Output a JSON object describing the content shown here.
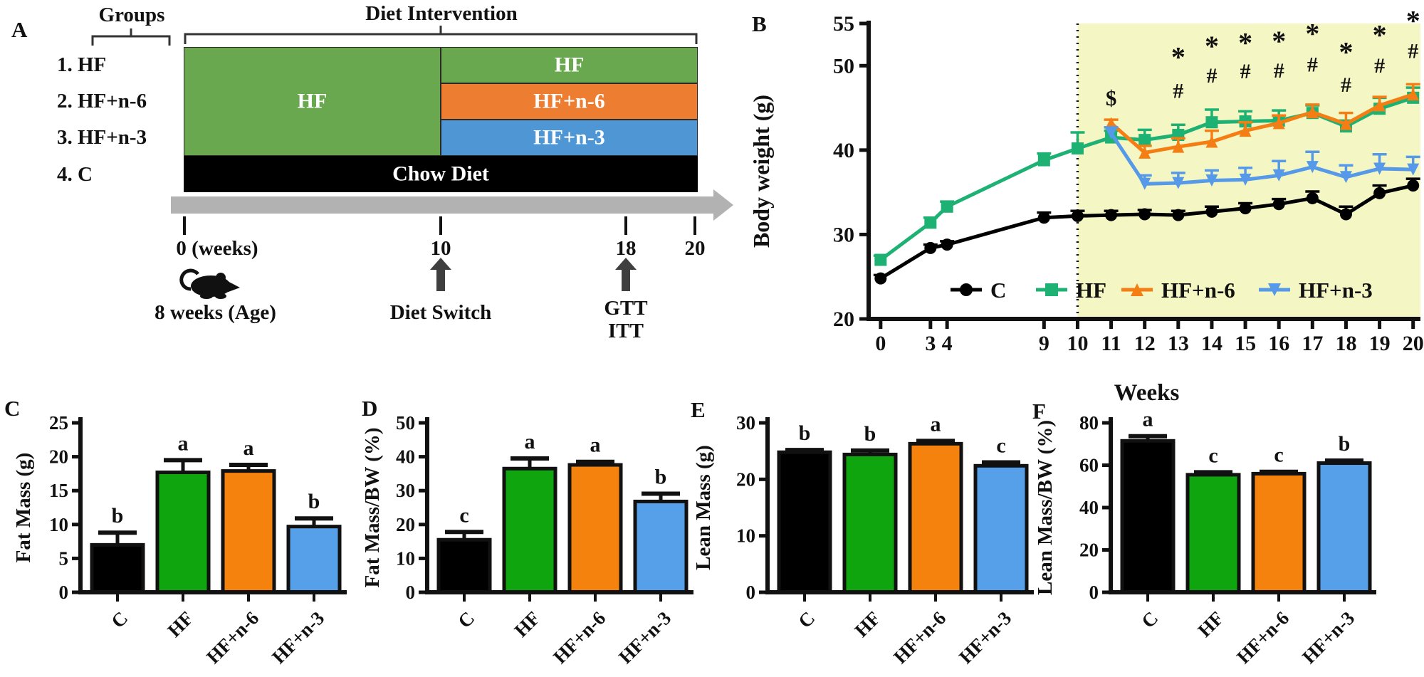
{
  "letters": [
    "A",
    "B",
    "C",
    "D",
    "E",
    "F"
  ],
  "colors": {
    "black": "#000000",
    "bar_green": "#0ea50e",
    "bar_orange": "#f5820d",
    "bar_blue": "#55a0e8",
    "line_green": "#1db173",
    "line_orange": "#f57e14",
    "line_blue": "#5599e8",
    "panel_green": "#6aa84f",
    "panel_orange": "#ed7d31",
    "panel_blue": "#4f97d4",
    "highlight_yellow": "#f4f7c3",
    "timeline_gray": "#b2b2b2",
    "arrow_dark": "#3f3f3f"
  },
  "panel_a": {
    "groups_label": "Groups",
    "diet_intervention_label": "Diet Intervention",
    "groups": [
      "1. HF",
      "2. HF+n-6",
      "3. HF+n-3",
      "4. C"
    ],
    "left_block": {
      "label": "HF",
      "color": "#6aa84f"
    },
    "right_blocks": [
      {
        "label": "HF",
        "color": "#6aa84f"
      },
      {
        "label": "HF+n-6",
        "color": "#ed7d31"
      },
      {
        "label": "HF+n-3",
        "color": "#4f97d4"
      }
    ],
    "bottom_block": {
      "label": "Chow Diet",
      "color": "#000000"
    },
    "timeline_ticks": [
      "0 (weeks)",
      "10",
      "18",
      "20"
    ],
    "age_label": "8 weeks (Age)",
    "events": [
      {
        "at_tick": "10",
        "lines": [
          "Diet Switch"
        ]
      },
      {
        "at_tick": "18",
        "lines": [
          "GTT",
          "ITT"
        ]
      }
    ]
  },
  "chart_data": [
    {
      "id": "B",
      "type": "line",
      "ylabel": "Body weight (g)",
      "xlabel": "Weeks",
      "x": [
        0,
        3,
        4,
        9,
        10,
        11,
        12,
        13,
        14,
        15,
        16,
        17,
        18,
        19,
        20
      ],
      "ylim": [
        20,
        55
      ],
      "yticks": [
        20,
        30,
        40,
        50,
        55
      ],
      "highlight_from_week": 10,
      "dotted_line_week": 10,
      "legend_position": "bottom-inside",
      "series": [
        {
          "name": "C",
          "color": "#000000",
          "marker": "circle",
          "values": [
            24.8,
            28.4,
            28.8,
            32.0,
            32.2,
            32.3,
            32.4,
            32.3,
            32.7,
            33.1,
            33.6,
            34.3,
            32.4,
            34.9,
            35.8
          ],
          "errors": [
            0.4,
            0.4,
            0.4,
            0.6,
            0.6,
            0.5,
            0.5,
            0.5,
            0.6,
            0.6,
            0.6,
            0.8,
            0.9,
            0.9,
            0.8
          ]
        },
        {
          "name": "HF",
          "color": "#1db173",
          "marker": "square",
          "values": [
            27.0,
            31.4,
            33.3,
            38.8,
            40.2,
            41.5,
            41.2,
            41.8,
            43.3,
            43.4,
            43.5,
            44.4,
            42.8,
            44.9,
            46.2
          ],
          "errors": [
            0.5,
            0.6,
            0.6,
            0.8,
            1.9,
            0.8,
            1.2,
            1.2,
            1.5,
            1.2,
            1.2,
            0.9,
            0.7,
            1.3,
            1.2
          ]
        },
        {
          "name": "HF+n-6",
          "color": "#f57e14",
          "marker": "triangle",
          "values": [
            null,
            null,
            null,
            null,
            null,
            43.2,
            39.7,
            40.4,
            41.0,
            42.3,
            43.2,
            44.5,
            43.1,
            45.3,
            46.6
          ],
          "errors": [
            null,
            null,
            null,
            null,
            null,
            0.4,
            0.8,
            1.0,
            1.3,
            1.0,
            0.9,
            0.9,
            1.3,
            1.0,
            1.2
          ]
        },
        {
          "name": "HF+n-3",
          "color": "#5599e8",
          "marker": "triangle-down",
          "values": [
            null,
            null,
            null,
            null,
            null,
            42.0,
            36.0,
            36.1,
            36.4,
            36.5,
            37.0,
            38.0,
            36.8,
            37.8,
            37.7
          ],
          "errors": [
            null,
            null,
            null,
            null,
            null,
            0.7,
            1.0,
            1.2,
            1.2,
            1.4,
            1.7,
            1.8,
            1.4,
            1.7,
            1.5
          ]
        }
      ],
      "annotations": [
        {
          "week": 11,
          "symbol": "$",
          "y": 45.3
        },
        {
          "week": 13,
          "symbol": "#",
          "y": 46.2
        },
        {
          "week": 13,
          "symbol": "*",
          "y": 49.9
        },
        {
          "week": 14,
          "symbol": "#",
          "y": 48.0
        },
        {
          "week": 14,
          "symbol": "*",
          "y": 51.2
        },
        {
          "week": 15,
          "symbol": "#",
          "y": 48.5
        },
        {
          "week": 15,
          "symbol": "*",
          "y": 51.6
        },
        {
          "week": 16,
          "symbol": "#",
          "y": 48.6
        },
        {
          "week": 16,
          "symbol": "*",
          "y": 51.8
        },
        {
          "week": 17,
          "symbol": "#",
          "y": 49.3
        },
        {
          "week": 17,
          "symbol": "*",
          "y": 52.7
        },
        {
          "week": 18,
          "symbol": "#",
          "y": 46.9
        },
        {
          "week": 18,
          "symbol": "*",
          "y": 50.5
        },
        {
          "week": 19,
          "symbol": "#",
          "y": 49.2
        },
        {
          "week": 19,
          "symbol": "*",
          "y": 52.5
        },
        {
          "week": 20,
          "symbol": "#",
          "y": 50.9
        },
        {
          "week": 20,
          "symbol": "*",
          "y": 54.2
        }
      ]
    },
    {
      "id": "C",
      "type": "bar",
      "ylabel": "Fat Mass (g)",
      "categories": [
        "C",
        "HF",
        "HF+n-6",
        "HF+n-3"
      ],
      "values": [
        7.0,
        17.7,
        17.9,
        9.7
      ],
      "errors": [
        1.8,
        1.8,
        0.9,
        1.2
      ],
      "letters": [
        "b",
        "a",
        "a",
        "b"
      ],
      "ylim": [
        0,
        25
      ],
      "yticks": [
        0,
        5,
        10,
        15,
        20,
        25
      ],
      "bar_colors": [
        "#000000",
        "#0ea50e",
        "#f5820d",
        "#55a0e8"
      ]
    },
    {
      "id": "D",
      "type": "bar",
      "ylabel": "Fat Mass/BW (%)",
      "categories": [
        "C",
        "HF",
        "HF+n-6",
        "HF+n-3"
      ],
      "values": [
        15.5,
        36.5,
        37.6,
        26.8
      ],
      "errors": [
        2.3,
        3.0,
        0.9,
        2.3
      ],
      "letters": [
        "c",
        "a",
        "a",
        "b"
      ],
      "ylim": [
        0,
        50
      ],
      "yticks": [
        0,
        10,
        20,
        30,
        40,
        50
      ],
      "bar_colors": [
        "#000000",
        "#0ea50e",
        "#f5820d",
        "#55a0e8"
      ]
    },
    {
      "id": "E",
      "type": "bar",
      "ylabel": "Lean Mass (g)",
      "categories": [
        "C",
        "HF",
        "HF+n-6",
        "HF+n-3"
      ],
      "values": [
        24.8,
        24.4,
        26.3,
        22.4
      ],
      "errors": [
        0.4,
        0.7,
        0.5,
        0.6
      ],
      "letters": [
        "b",
        "b",
        "a",
        "c"
      ],
      "ylim": [
        0,
        30
      ],
      "yticks": [
        0,
        10,
        20,
        30
      ],
      "bar_colors": [
        "#000000",
        "#0ea50e",
        "#f5820d",
        "#55a0e8"
      ]
    },
    {
      "id": "F",
      "type": "bar",
      "ylabel": "Lean Mass/BW (%)",
      "categories": [
        "C",
        "HF",
        "HF+n-6",
        "HF+n-3"
      ],
      "values": [
        71.5,
        55.5,
        56.0,
        61.0
      ],
      "errors": [
        2.2,
        1.2,
        0.9,
        1.2
      ],
      "letters": [
        "a",
        "c",
        "c",
        "b"
      ],
      "ylim": [
        0,
        80
      ],
      "yticks": [
        0,
        20,
        40,
        60,
        80
      ],
      "bar_colors": [
        "#000000",
        "#0ea50e",
        "#f5820d",
        "#55a0e8"
      ]
    }
  ]
}
